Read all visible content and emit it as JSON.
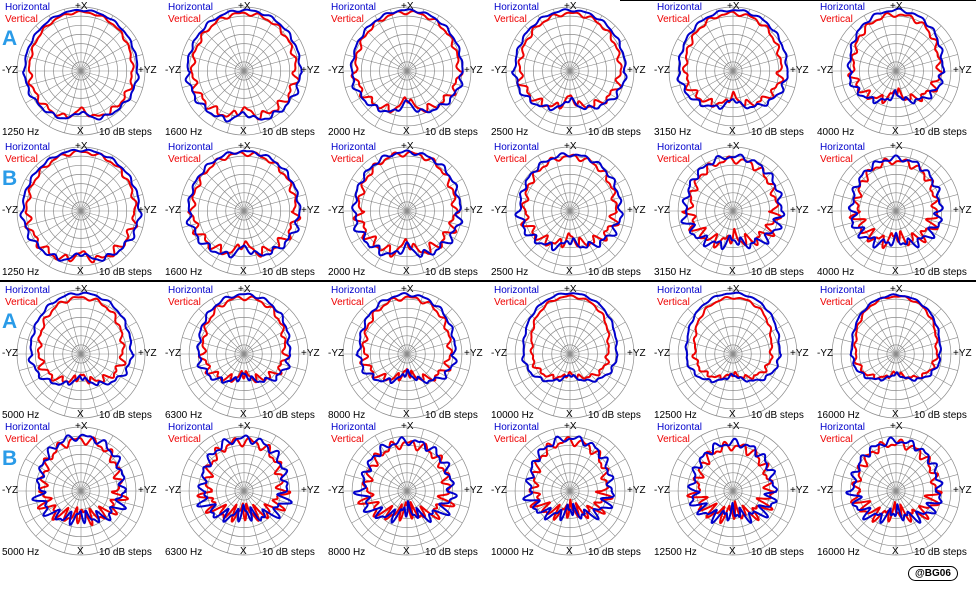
{
  "chart_data": {
    "type": "polar",
    "angle_labels": {
      "top": "+X",
      "bottom": "X",
      "left": "-YZ",
      "right": "+YZ"
    },
    "radial_step": "10 dB steps",
    "series_names": [
      "Horizontal",
      "Vertical"
    ],
    "colors": {
      "Horizontal": "#0000cc",
      "Vertical": "#ee0000"
    },
    "grid": true,
    "rings": 7,
    "spokes": 24,
    "groups": [
      {
        "label": "A",
        "panels": [
          {
            "frequency": "1250 Hz",
            "horizontal": {
              "width": 0.92,
              "top": 0.95,
              "bottom": 0.78,
              "notch": 0.14,
              "ripple": 0.02
            },
            "vertical": {
              "width": 0.84,
              "top": 0.92,
              "bottom": 0.76,
              "notch": 0.16,
              "ripple": 0.03
            }
          },
          {
            "frequency": "1600 Hz",
            "horizontal": {
              "width": 0.92,
              "top": 0.95,
              "bottom": 0.8,
              "notch": 0.14,
              "ripple": 0.03
            },
            "vertical": {
              "width": 0.84,
              "top": 0.9,
              "bottom": 0.74,
              "notch": 0.15,
              "ripple": 0.05
            }
          },
          {
            "frequency": "2000 Hz",
            "horizontal": {
              "width": 0.9,
              "top": 0.95,
              "bottom": 0.66,
              "notch": 0.18,
              "ripple": 0.03
            },
            "vertical": {
              "width": 0.84,
              "top": 0.92,
              "bottom": 0.62,
              "notch": 0.2,
              "ripple": 0.05
            }
          },
          {
            "frequency": "2500 Hz",
            "horizontal": {
              "width": 0.9,
              "top": 0.95,
              "bottom": 0.58,
              "notch": 0.14,
              "ripple": 0.03
            },
            "vertical": {
              "width": 0.82,
              "top": 0.9,
              "bottom": 0.56,
              "notch": 0.16,
              "ripple": 0.05
            }
          },
          {
            "frequency": "3150 Hz",
            "horizontal": {
              "width": 0.88,
              "top": 0.95,
              "bottom": 0.56,
              "notch": 0.12,
              "ripple": 0.03
            },
            "vertical": {
              "width": 0.78,
              "top": 0.9,
              "bottom": 0.52,
              "notch": 0.14,
              "ripple": 0.05
            }
          },
          {
            "frequency": "4000 Hz",
            "horizontal": {
              "width": 0.76,
              "top": 0.95,
              "bottom": 0.45,
              "notch": 0.1,
              "ripple": 0.04
            },
            "vertical": {
              "width": 0.7,
              "top": 0.88,
              "bottom": 0.42,
              "notch": 0.12,
              "ripple": 0.06
            }
          }
        ]
      },
      {
        "label": "B",
        "panels": [
          {
            "frequency": "1250 Hz",
            "horizontal": {
              "width": 0.95,
              "top": 0.95,
              "bottom": 0.8,
              "notch": 0.14,
              "ripple": 0.03
            },
            "vertical": {
              "width": 0.88,
              "top": 0.92,
              "bottom": 0.8,
              "notch": 0.14,
              "ripple": 0.05
            }
          },
          {
            "frequency": "1600 Hz",
            "horizontal": {
              "width": 0.9,
              "top": 0.93,
              "bottom": 0.72,
              "notch": 0.16,
              "ripple": 0.04
            },
            "vertical": {
              "width": 0.84,
              "top": 0.9,
              "bottom": 0.68,
              "notch": 0.18,
              "ripple": 0.06
            }
          },
          {
            "frequency": "2000 Hz",
            "horizontal": {
              "width": 0.86,
              "top": 0.92,
              "bottom": 0.72,
              "notch": 0.18,
              "ripple": 0.05
            },
            "vertical": {
              "width": 0.78,
              "top": 0.9,
              "bottom": 0.68,
              "notch": 0.2,
              "ripple": 0.07
            }
          },
          {
            "frequency": "2500 Hz",
            "horizontal": {
              "width": 0.82,
              "top": 0.88,
              "bottom": 0.56,
              "notch": 0.1,
              "ripple": 0.05
            },
            "vertical": {
              "width": 0.74,
              "top": 0.85,
              "bottom": 0.52,
              "notch": 0.12,
              "ripple": 0.07
            }
          },
          {
            "frequency": "3150 Hz",
            "horizontal": {
              "width": 0.78,
              "top": 0.85,
              "bottom": 0.52,
              "notch": 0.08,
              "ripple": 0.07
            },
            "vertical": {
              "width": 0.7,
              "top": 0.8,
              "bottom": 0.48,
              "notch": 0.1,
              "ripple": 0.09
            }
          },
          {
            "frequency": "4000 Hz",
            "horizontal": {
              "width": 0.72,
              "top": 0.82,
              "bottom": 0.52,
              "notch": 0.08,
              "ripple": 0.07
            },
            "vertical": {
              "width": 0.64,
              "top": 0.78,
              "bottom": 0.48,
              "notch": 0.1,
              "ripple": 0.09
            }
          }
        ]
      },
      {
        "label": "A",
        "panels": [
          {
            "frequency": "5000 Hz",
            "horizontal": {
              "width": 0.82,
              "top": 0.95,
              "bottom": 0.42,
              "notch": 0.06,
              "ripple": 0.03
            },
            "vertical": {
              "width": 0.68,
              "top": 0.88,
              "bottom": 0.4,
              "notch": 0.06,
              "ripple": 0.05
            }
          },
          {
            "frequency": "6300 Hz",
            "horizontal": {
              "width": 0.74,
              "top": 0.93,
              "bottom": 0.38,
              "notch": 0.06,
              "ripple": 0.04
            },
            "vertical": {
              "width": 0.66,
              "top": 0.88,
              "bottom": 0.36,
              "notch": 0.06,
              "ripple": 0.06
            }
          },
          {
            "frequency": "8000 Hz",
            "horizontal": {
              "width": 0.78,
              "top": 0.93,
              "bottom": 0.34,
              "notch": 0.05,
              "ripple": 0.04
            },
            "vertical": {
              "width": 0.7,
              "top": 0.88,
              "bottom": 0.32,
              "notch": 0.05,
              "ripple": 0.06
            }
          },
          {
            "frequency": "10000 Hz",
            "horizontal": {
              "width": 0.76,
              "top": 0.95,
              "bottom": 0.36,
              "notch": 0.03,
              "ripple": 0.02
            },
            "vertical": {
              "width": 0.62,
              "top": 0.9,
              "bottom": 0.34,
              "notch": 0.03,
              "ripple": 0.03
            }
          },
          {
            "frequency": "12500 Hz",
            "horizontal": {
              "width": 0.76,
              "top": 0.95,
              "bottom": 0.36,
              "notch": 0.03,
              "ripple": 0.02
            },
            "vertical": {
              "width": 0.62,
              "top": 0.88,
              "bottom": 0.34,
              "notch": 0.03,
              "ripple": 0.03
            }
          },
          {
            "frequency": "16000 Hz",
            "horizontal": {
              "width": 0.72,
              "top": 0.92,
              "bottom": 0.34,
              "notch": 0.03,
              "ripple": 0.02
            },
            "vertical": {
              "width": 0.66,
              "top": 0.9,
              "bottom": 0.32,
              "notch": 0.03,
              "ripple": 0.03
            }
          }
        ]
      },
      {
        "label": "B",
        "panels": [
          {
            "frequency": "5000 Hz",
            "horizontal": {
              "width": 0.68,
              "top": 0.85,
              "bottom": 0.42,
              "notch": 0.05,
              "ripple": 0.09
            },
            "vertical": {
              "width": 0.62,
              "top": 0.8,
              "bottom": 0.4,
              "notch": 0.05,
              "ripple": 0.11
            }
          },
          {
            "frequency": "6300 Hz",
            "horizontal": {
              "width": 0.68,
              "top": 0.82,
              "bottom": 0.36,
              "notch": 0.05,
              "ripple": 0.1
            },
            "vertical": {
              "width": 0.6,
              "top": 0.78,
              "bottom": 0.34,
              "notch": 0.05,
              "ripple": 0.12
            }
          },
          {
            "frequency": "8000 Hz",
            "horizontal": {
              "width": 0.72,
              "top": 0.78,
              "bottom": 0.32,
              "notch": 0.05,
              "ripple": 0.1
            },
            "vertical": {
              "width": 0.66,
              "top": 0.74,
              "bottom": 0.3,
              "notch": 0.05,
              "ripple": 0.12
            }
          },
          {
            "frequency": "10000 Hz",
            "horizontal": {
              "width": 0.66,
              "top": 0.82,
              "bottom": 0.32,
              "notch": 0.04,
              "ripple": 0.09
            },
            "vertical": {
              "width": 0.58,
              "top": 0.78,
              "bottom": 0.3,
              "notch": 0.04,
              "ripple": 0.11
            }
          },
          {
            "frequency": "12500 Hz",
            "horizontal": {
              "width": 0.66,
              "top": 0.75,
              "bottom": 0.36,
              "notch": 0.04,
              "ripple": 0.1
            },
            "vertical": {
              "width": 0.58,
              "top": 0.7,
              "bottom": 0.34,
              "notch": 0.04,
              "ripple": 0.12
            }
          },
          {
            "frequency": "16000 Hz",
            "horizontal": {
              "width": 0.7,
              "top": 0.78,
              "bottom": 0.36,
              "notch": 0.04,
              "ripple": 0.09
            },
            "vertical": {
              "width": 0.64,
              "top": 0.74,
              "bottom": 0.34,
              "notch": 0.04,
              "ripple": 0.11
            }
          }
        ]
      }
    ]
  },
  "credit": "@BG06"
}
